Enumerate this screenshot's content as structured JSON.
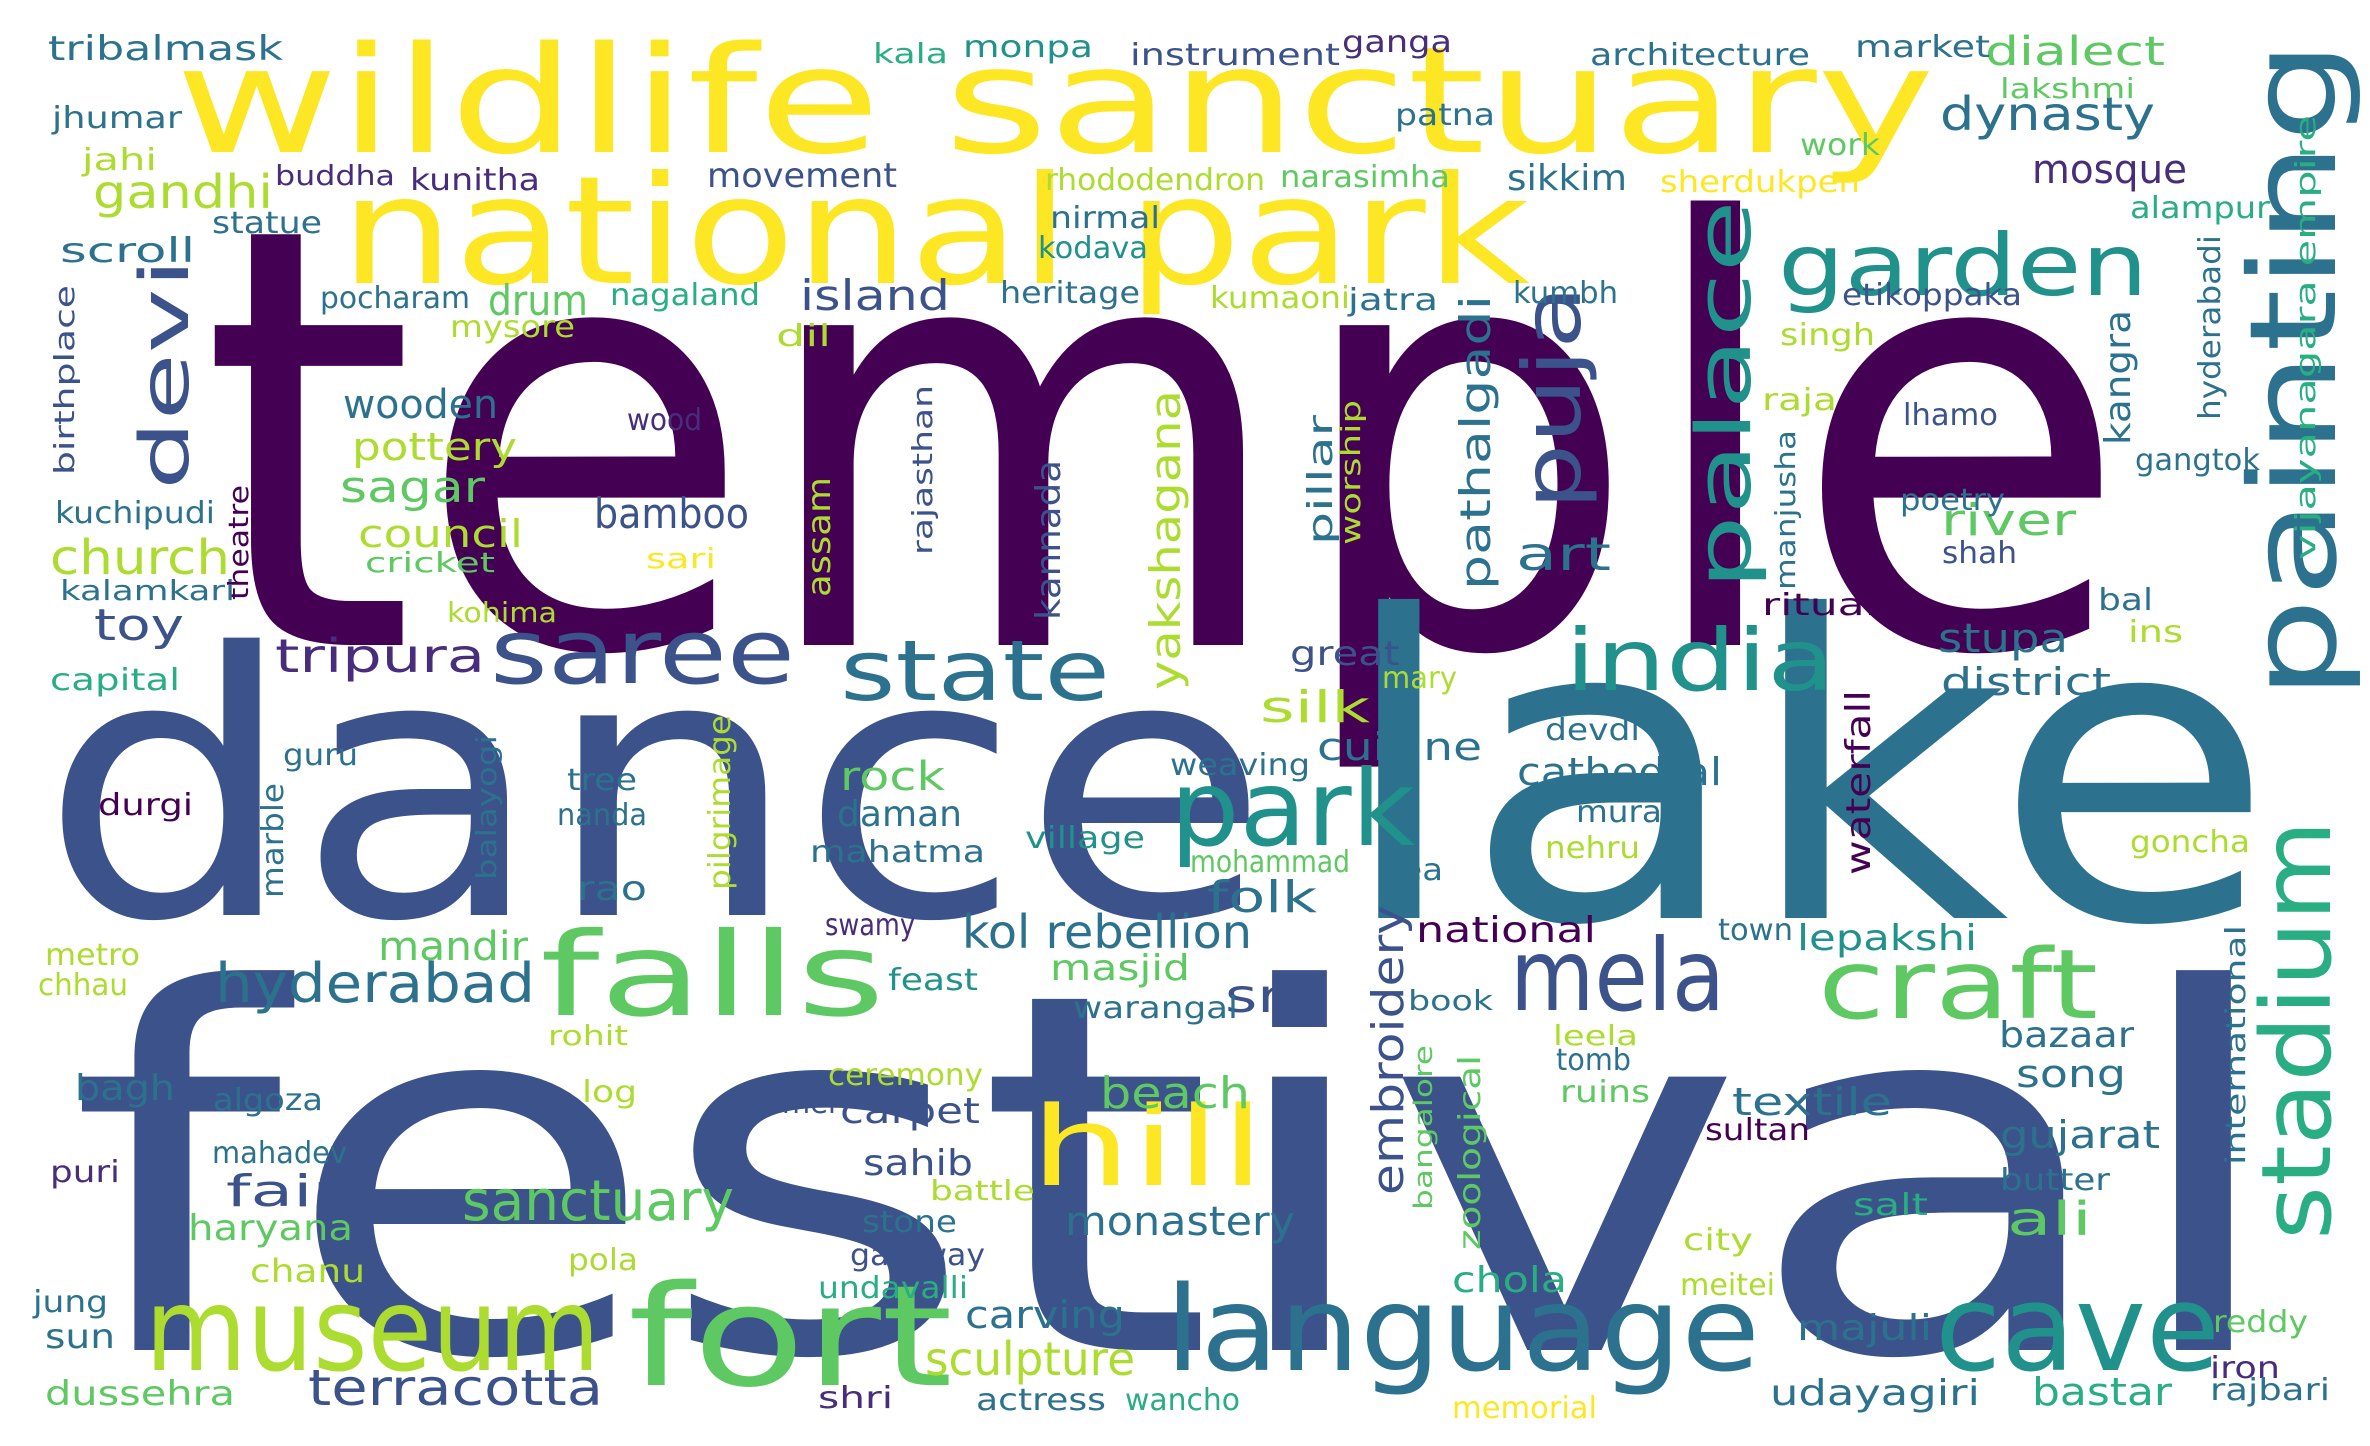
{
  "palette": {
    "indigo": "#440154",
    "purple": "#472d7b",
    "blue": "#3b528b",
    "slate": "#2c728e",
    "teal": "#21918c",
    "green": "#28ae80",
    "lime": "#5ec962",
    "yellowgreen": "#addc30",
    "yellow": "#fde725"
  },
  "words": [
    {
      "text": "temple",
      "color": "indigo"
    },
    {
      "text": "festival",
      "color": "blue"
    },
    {
      "text": "dance",
      "color": "blue"
    },
    {
      "text": "lake",
      "color": "slate"
    },
    {
      "text": "wildlife sanctuary",
      "color": "yellow"
    },
    {
      "text": "national park",
      "color": "yellow"
    },
    {
      "text": "painting",
      "color": "slate"
    },
    {
      "text": "museum",
      "color": "yellowgreen"
    },
    {
      "text": "fort",
      "color": "lime"
    },
    {
      "text": "language",
      "color": "slate"
    },
    {
      "text": "cave",
      "color": "teal"
    },
    {
      "text": "falls",
      "color": "lime"
    },
    {
      "text": "park",
      "color": "teal"
    },
    {
      "text": "mela",
      "color": "blue"
    },
    {
      "text": "craft",
      "color": "lime"
    },
    {
      "text": "hill",
      "color": "yellow"
    },
    {
      "text": "stadium",
      "color": "green"
    },
    {
      "text": "saree",
      "color": "blue"
    },
    {
      "text": "garden",
      "color": "teal"
    },
    {
      "text": "india",
      "color": "teal"
    },
    {
      "text": "state",
      "color": "slate"
    },
    {
      "text": "palace",
      "color": "teal"
    },
    {
      "text": "puja",
      "color": "blue"
    },
    {
      "text": "devi",
      "color": "blue"
    },
    {
      "text": "sanctuary",
      "color": "lime"
    },
    {
      "text": "terracotta",
      "color": "blue"
    },
    {
      "text": "hyderabad",
      "color": "slate"
    },
    {
      "text": "sculpture",
      "color": "yellowgreen"
    },
    {
      "text": "kol rebellion",
      "color": "slate"
    },
    {
      "text": "embroidery",
      "color": "blue"
    },
    {
      "text": "yakshagana",
      "color": "yellowgreen"
    },
    {
      "text": "pathalgadi",
      "color": "slate"
    },
    {
      "text": "dialect",
      "color": "lime"
    },
    {
      "text": "dynasty",
      "color": "slate"
    },
    {
      "text": "gandhi",
      "color": "yellowgreen"
    },
    {
      "text": "church",
      "color": "yellowgreen"
    },
    {
      "text": "tripura",
      "color": "purple"
    },
    {
      "text": "island",
      "color": "blue"
    },
    {
      "text": "drum",
      "color": "lime"
    },
    {
      "text": "wooden",
      "color": "slate"
    },
    {
      "text": "sagar",
      "color": "lime"
    },
    {
      "text": "pottery",
      "color": "yellowgreen"
    },
    {
      "text": "council",
      "color": "yellowgreen"
    },
    {
      "text": "bamboo",
      "color": "blue"
    },
    {
      "text": "toy",
      "color": "blue"
    },
    {
      "text": "art",
      "color": "slate"
    },
    {
      "text": "river",
      "color": "lime"
    },
    {
      "text": "stupa",
      "color": "slate"
    },
    {
      "text": "district",
      "color": "slate"
    },
    {
      "text": "mosque",
      "color": "purple"
    },
    {
      "text": "sikkim",
      "color": "slate"
    },
    {
      "text": "silk",
      "color": "yellowgreen"
    },
    {
      "text": "cuisine",
      "color": "slate"
    },
    {
      "text": "cathedral",
      "color": "slate"
    },
    {
      "text": "rock",
      "color": "lime"
    },
    {
      "text": "daman",
      "color": "slate"
    },
    {
      "text": "folk",
      "color": "slate"
    },
    {
      "text": "mandir",
      "color": "lime"
    },
    {
      "text": "sri",
      "color": "blue"
    },
    {
      "text": "beach",
      "color": "lime"
    },
    {
      "text": "fair",
      "color": "blue"
    },
    {
      "text": "monastery",
      "color": "slate"
    },
    {
      "text": "ali",
      "color": "lime"
    },
    {
      "text": "gujarat",
      "color": "slate"
    },
    {
      "text": "song",
      "color": "slate"
    },
    {
      "text": "bazaar",
      "color": "slate"
    },
    {
      "text": "textile",
      "color": "slate"
    },
    {
      "text": "national",
      "color": "indigo"
    },
    {
      "text": "lepakshi",
      "color": "teal"
    },
    {
      "text": "carving",
      "color": "slate"
    },
    {
      "text": "masjid",
      "color": "lime"
    },
    {
      "text": "carpet",
      "color": "blue"
    },
    {
      "text": "sahib",
      "color": "blue"
    },
    {
      "text": "haryana",
      "color": "lime"
    },
    {
      "text": "bagh",
      "color": "slate"
    },
    {
      "text": "chola",
      "color": "green"
    },
    {
      "text": "majuli",
      "color": "slate"
    },
    {
      "text": "bastar",
      "color": "green"
    },
    {
      "text": "udayagiri",
      "color": "slate"
    },
    {
      "text": "dussehra",
      "color": "lime"
    },
    {
      "text": "sun",
      "color": "slate"
    },
    {
      "text": "chanu",
      "color": "yellowgreen"
    },
    {
      "text": "rao",
      "color": "slate"
    },
    {
      "text": "mahatma",
      "color": "slate"
    },
    {
      "text": "movement",
      "color": "blue"
    },
    {
      "text": "scroll",
      "color": "slate"
    },
    {
      "text": "tribalmask",
      "color": "slate"
    },
    {
      "text": "kala",
      "color": "green"
    },
    {
      "text": "monpa",
      "color": "teal"
    },
    {
      "text": "instrument",
      "color": "blue"
    },
    {
      "text": "ganga",
      "color": "purple"
    },
    {
      "text": "architecture",
      "color": "slate"
    },
    {
      "text": "market",
      "color": "slate"
    },
    {
      "text": "lakshmi",
      "color": "lime"
    },
    {
      "text": "jhumar",
      "color": "slate"
    },
    {
      "text": "patna",
      "color": "slate"
    },
    {
      "text": "work",
      "color": "lime"
    },
    {
      "text": "jahi",
      "color": "yellowgreen"
    },
    {
      "text": "buddha",
      "color": "purple"
    },
    {
      "text": "kunitha",
      "color": "purple"
    },
    {
      "text": "rhododendron",
      "color": "yellowgreen"
    },
    {
      "text": "narasimha",
      "color": "lime"
    },
    {
      "text": "sherdukpen",
      "color": "yellow"
    },
    {
      "text": "alampur",
      "color": "green"
    },
    {
      "text": "nirmal",
      "color": "slate"
    },
    {
      "text": "statue",
      "color": "slate"
    },
    {
      "text": "kodava",
      "color": "teal"
    },
    {
      "text": "pocharam",
      "color": "slate"
    },
    {
      "text": "nagaland",
      "color": "green"
    },
    {
      "text": "heritage",
      "color": "slate"
    },
    {
      "text": "kumaoni",
      "color": "yellowgreen"
    },
    {
      "text": "jatra",
      "color": "slate"
    },
    {
      "text": "kumbh",
      "color": "slate"
    },
    {
      "text": "etikoppaka",
      "color": "blue"
    },
    {
      "text": "mysore",
      "color": "yellowgreen"
    },
    {
      "text": "dil",
      "color": "yellowgreen"
    },
    {
      "text": "singh",
      "color": "yellowgreen"
    },
    {
      "text": "hyderabadi",
      "color": "slate"
    },
    {
      "text": "kangra",
      "color": "slate"
    },
    {
      "text": "vijayanagara empire",
      "color": "green"
    },
    {
      "text": "wood",
      "color": "purple"
    },
    {
      "text": "raja",
      "color": "yellowgreen"
    },
    {
      "text": "lhamo",
      "color": "blue"
    },
    {
      "text": "gangtok",
      "color": "slate"
    },
    {
      "text": "birthplace",
      "color": "blue"
    },
    {
      "text": "rajasthan",
      "color": "blue"
    },
    {
      "text": "kuchipudi",
      "color": "slate"
    },
    {
      "text": "cricket",
      "color": "lime"
    },
    {
      "text": "sari",
      "color": "yellow"
    },
    {
      "text": "theatre",
      "color": "indigo"
    },
    {
      "text": "assam",
      "color": "yellowgreen"
    },
    {
      "text": "kannada",
      "color": "blue"
    },
    {
      "text": "pillar",
      "color": "slate"
    },
    {
      "text": "worship",
      "color": "yellowgreen"
    },
    {
      "text": "manjusha",
      "color": "slate"
    },
    {
      "text": "poetry",
      "color": "slate"
    },
    {
      "text": "shah",
      "color": "blue"
    },
    {
      "text": "ritual",
      "color": "indigo"
    },
    {
      "text": "bal",
      "color": "slate"
    },
    {
      "text": "ins",
      "color": "yellowgreen"
    },
    {
      "text": "kalamkari",
      "color": "slate"
    },
    {
      "text": "kohima",
      "color": "yellowgreen"
    },
    {
      "text": "capital",
      "color": "green"
    },
    {
      "text": "great",
      "color": "blue"
    },
    {
      "text": "mary",
      "color": "yellowgreen"
    },
    {
      "text": "waterfall",
      "color": "indigo"
    },
    {
      "text": "devdi",
      "color": "slate"
    },
    {
      "text": "guru",
      "color": "slate"
    },
    {
      "text": "pilgrimage",
      "color": "yellowgreen"
    },
    {
      "text": "weaving",
      "color": "slate"
    },
    {
      "text": "tree",
      "color": "slate"
    },
    {
      "text": "durgi",
      "color": "indigo"
    },
    {
      "text": "marble",
      "color": "slate"
    },
    {
      "text": "balayogi",
      "color": "slate"
    },
    {
      "text": "nanda",
      "color": "slate"
    },
    {
      "text": "village",
      "color": "teal"
    },
    {
      "text": "mohammad",
      "color": "lime"
    },
    {
      "text": "mural",
      "color": "slate"
    },
    {
      "text": "nehru",
      "color": "yellowgreen"
    },
    {
      "text": "goncha",
      "color": "yellowgreen"
    },
    {
      "text": "tea",
      "color": "slate"
    },
    {
      "text": "swamy",
      "color": "purple"
    },
    {
      "text": "town",
      "color": "slate"
    },
    {
      "text": "international",
      "color": "slate"
    },
    {
      "text": "metro",
      "color": "yellowgreen"
    },
    {
      "text": "chhau",
      "color": "yellowgreen"
    },
    {
      "text": "feast",
      "color": "teal"
    },
    {
      "text": "warangal",
      "color": "slate"
    },
    {
      "text": "book",
      "color": "slate"
    },
    {
      "text": "rohit",
      "color": "yellowgreen"
    },
    {
      "text": "leela",
      "color": "yellowgreen"
    },
    {
      "text": "tomb",
      "color": "slate"
    },
    {
      "text": "ruins",
      "color": "lime"
    },
    {
      "text": "zoological",
      "color": "lime"
    },
    {
      "text": "bangalore",
      "color": "lime"
    },
    {
      "text": "algoza",
      "color": "slate"
    },
    {
      "text": "log",
      "color": "yellowgreen"
    },
    {
      "text": "ceremony",
      "color": "yellowgreen"
    },
    {
      "text": "summer",
      "color": "blue"
    },
    {
      "text": "sultan",
      "color": "indigo"
    },
    {
      "text": "mahadev",
      "color": "slate"
    },
    {
      "text": "puri",
      "color": "purple"
    },
    {
      "text": "battle",
      "color": "yellowgreen"
    },
    {
      "text": "butter",
      "color": "slate"
    },
    {
      "text": "salt",
      "color": "green"
    },
    {
      "text": "stone",
      "color": "slate"
    },
    {
      "text": "gateway",
      "color": "blue"
    },
    {
      "text": "pola",
      "color": "yellowgreen"
    },
    {
      "text": "city",
      "color": "yellowgreen"
    },
    {
      "text": "meitei",
      "color": "yellowgreen"
    },
    {
      "text": "jung",
      "color": "slate"
    },
    {
      "text": "undavalli",
      "color": "green"
    },
    {
      "text": "reddy",
      "color": "lime"
    },
    {
      "text": "iron",
      "color": "purple"
    },
    {
      "text": "shri",
      "color": "purple"
    },
    {
      "text": "actress",
      "color": "slate"
    },
    {
      "text": "wancho",
      "color": "green"
    },
    {
      "text": "memorial",
      "color": "yellow"
    },
    {
      "text": "rajbari",
      "color": "slate"
    }
  ]
}
